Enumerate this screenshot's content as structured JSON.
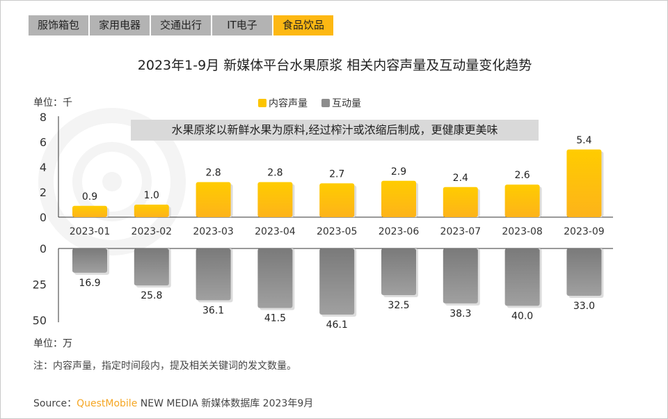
{
  "tabs": [
    {
      "label": "服饰箱包"
    },
    {
      "label": "家用电器"
    },
    {
      "label": "交通出行"
    },
    {
      "label": "IT电子"
    },
    {
      "label": "食品饮品",
      "active": true
    }
  ],
  "title": "2023年1-9月 新媒体平台水果原浆 相关内容声量及互动量变化趋势",
  "unit_top": "单位：千",
  "unit_bottom": "单位：万",
  "annotation": "水果原浆以新鲜水果为原料,经过榨汁或浓缩后制成，更健康更美味",
  "note": "注：内容声量，指定时间段内，提及相关关键词的发文数量。",
  "source": {
    "prefix": "Source：",
    "brand": "QuestMobile",
    "rest": " NEW MEDIA 新媒体数据库 2023年9月"
  },
  "watermark": "QUESTMOBILE",
  "chart_data": {
    "type": "bar",
    "categories": [
      "2023-01",
      "2023-02",
      "2023-03",
      "2023-04",
      "2023-05",
      "2023-06",
      "2023-07",
      "2023-08",
      "2023-09"
    ],
    "series": [
      {
        "name": "内容声量",
        "values": [
          0.9,
          1.0,
          2.8,
          2.8,
          2.7,
          2.9,
          2.4,
          2.6,
          5.4
        ],
        "color": "#fcc400",
        "ylim": [
          0,
          8
        ],
        "ticks": [
          0,
          2,
          4,
          6,
          8
        ],
        "unit": "千"
      },
      {
        "name": "互动量",
        "values": [
          16.9,
          25.8,
          36.1,
          41.5,
          46.1,
          32.5,
          38.3,
          40.0,
          33.0
        ],
        "color": "#8c8c8c",
        "ylim": [
          0,
          50
        ],
        "ticks": [
          0,
          25,
          50
        ],
        "unit": "万",
        "inverted": true
      }
    ],
    "legend": "top-center"
  }
}
